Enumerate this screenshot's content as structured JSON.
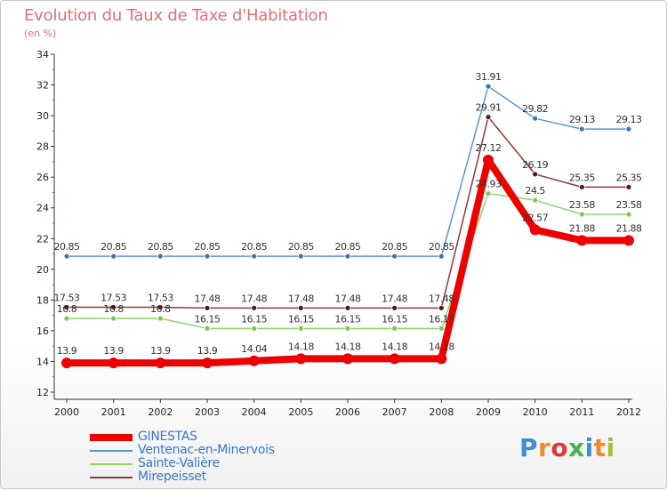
{
  "title": "Evolution du Taux de Taxe d'Habitation",
  "subtitle": "(en %)",
  "logo_text": "Proxiti",
  "colors": {
    "title": "#e07070",
    "axis": "#333333",
    "grid": "#e6e6e6",
    "logo_letters": [
      "#3a8fd6",
      "#f08c2e",
      "#d93a3a",
      "#4caf50",
      "#3a8fd6",
      "#f08c2e",
      "#9bc53d"
    ]
  },
  "chart_data": {
    "type": "line",
    "x": [
      "2000",
      "2001",
      "2002",
      "2003",
      "2004",
      "2005",
      "2006",
      "2007",
      "2008",
      "2009",
      "2010",
      "2011",
      "2012"
    ],
    "ylim": [
      12,
      34
    ],
    "yticks": [
      12,
      14,
      16,
      18,
      20,
      22,
      24,
      26,
      28,
      30,
      32,
      34
    ],
    "grid": false,
    "legend_position": "bottom-left",
    "series": [
      {
        "name": "Ventenac-en-Minervois",
        "color": "#5b97cc",
        "marker": "#3a78b5",
        "line_width": 1.5,
        "values": [
          20.85,
          20.85,
          20.85,
          20.85,
          20.85,
          20.85,
          20.85,
          20.85,
          20.85,
          31.91,
          29.82,
          29.13,
          29.13
        ],
        "labels": [
          "20.85",
          "20.85",
          "20.85",
          "20.85",
          "20.85",
          "20.85",
          "20.85",
          "20.85",
          "20.85",
          "31.91",
          "29.82",
          "29.13",
          "29.13"
        ]
      },
      {
        "name": "Mirepeisset",
        "color": "#8c3a3a",
        "marker": "#5a1414",
        "line_width": 1.5,
        "values": [
          17.53,
          17.53,
          17.53,
          17.48,
          17.48,
          17.48,
          17.48,
          17.48,
          17.48,
          29.91,
          26.19,
          25.35,
          25.35
        ],
        "labels": [
          "17.53",
          "17.53",
          "17.53",
          "17.48",
          "17.48",
          "17.48",
          "17.48",
          "17.48",
          "17.48",
          "29.91",
          "26.19",
          "25.35",
          "25.35"
        ]
      },
      {
        "name": "Sainte-Valière",
        "color": "#8fd36a",
        "marker": "#78c850",
        "line_width": 1.5,
        "values": [
          16.8,
          16.8,
          16.8,
          16.15,
          16.15,
          16.15,
          16.15,
          16.15,
          16.15,
          24.93,
          24.5,
          23.58,
          23.58
        ],
        "labels": [
          "16.8",
          "16.8",
          "16.8",
          "16.15",
          "16.15",
          "16.15",
          "16.15",
          "16.15",
          "16.15",
          "24.93",
          "24.5",
          "23.58",
          "23.58"
        ]
      },
      {
        "name": "GINESTAS",
        "color": "#ee0000",
        "marker": "#ee0000",
        "line_width": 8,
        "values": [
          13.9,
          13.9,
          13.9,
          13.9,
          14.04,
          14.18,
          14.18,
          14.18,
          14.18,
          27.12,
          22.57,
          21.88,
          21.88
        ],
        "labels": [
          "13.9",
          "13.9",
          "13.9",
          "13.9",
          "14.04",
          "14.18",
          "14.18",
          "14.18",
          "14.18",
          "27.12",
          "22.57",
          "21.88",
          "21.88"
        ]
      }
    ]
  },
  "legend": [
    {
      "name": "GINESTAS",
      "color": "#ee0000",
      "weight": 8
    },
    {
      "name": "Ventenac-en-Minervois",
      "color": "#5b97cc",
      "weight": 2
    },
    {
      "name": "Sainte-Valière",
      "color": "#8fd36a",
      "weight": 2
    },
    {
      "name": "Mirepeisset",
      "color": "#8c3a3a",
      "weight": 2
    }
  ]
}
